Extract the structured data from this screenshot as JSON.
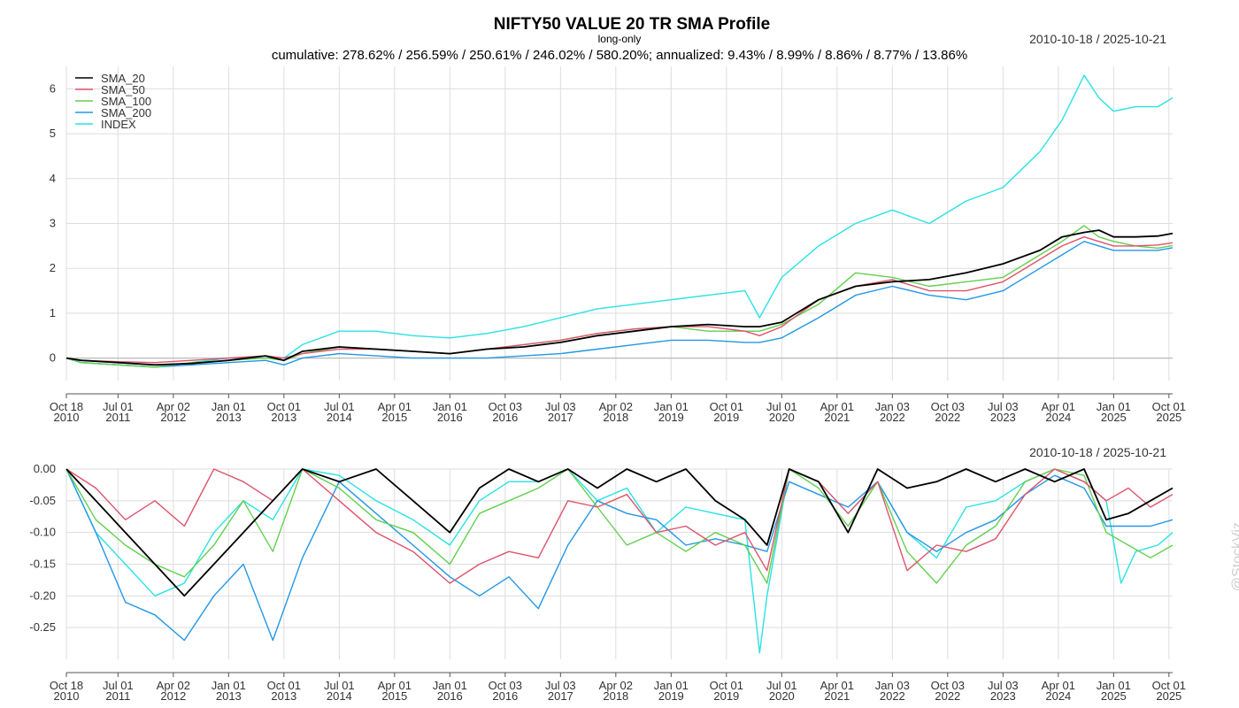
{
  "header": {
    "title": "NIFTY50 VALUE 20 TR SMA Profile",
    "subtitle": "long-only",
    "stats": "cumulative: 278.62% / 256.59% / 250.61% / 246.02% / 580.20%; annualized: 9.43% / 8.99% / 8.86% / 8.77% / 13.86%",
    "date_range_top": "2010-10-18 / 2025-10-21",
    "date_range_bottom": "2010-10-18 / 2025-10-21",
    "watermark": "@StockViz"
  },
  "colors": {
    "SMA_20": "#000000",
    "SMA_50": "#DF536B",
    "SMA_100": "#61D04F",
    "SMA_200": "#2297E6",
    "INDEX": "#28E2E5",
    "grid": "#DDDDDD"
  },
  "chart_data": [
    {
      "type": "line",
      "title": "Cumulative returns",
      "x_ticks": [
        "Oct 18\n2010",
        "Jul 01\n2011",
        "Apr 02\n2012",
        "Jan 01\n2013",
        "Oct 01\n2013",
        "Jul 01\n2014",
        "Apr 01\n2015",
        "Jan 01\n2016",
        "Oct 03\n2016",
        "Jul 03\n2017",
        "Apr 02\n2018",
        "Jan 01\n2019",
        "Oct 01\n2019",
        "Jul 01\n2020",
        "Apr 01\n2021",
        "Jan 03\n2022",
        "Oct 03\n2022",
        "Jul 03\n2023",
        "Apr 01\n2024",
        "Jan 01\n2025",
        "Oct 01\n2025"
      ],
      "y_ticks": [
        0,
        1,
        2,
        3,
        4,
        5,
        6
      ],
      "ylim": [
        -0.5,
        6.5
      ],
      "legend": "top-left",
      "grid": true,
      "series": [
        {
          "name": "SMA_20",
          "x": [
            2010.8,
            2011.0,
            2011.5,
            2012.0,
            2012.5,
            2013.0,
            2013.5,
            2013.75,
            2014.0,
            2014.5,
            2015.0,
            2015.5,
            2016.0,
            2016.5,
            2017.0,
            2017.5,
            2018.0,
            2018.5,
            2019.0,
            2019.5,
            2020.0,
            2020.2,
            2020.5,
            2021.0,
            2021.5,
            2022.0,
            2022.5,
            2023.0,
            2023.5,
            2024.0,
            2024.3,
            2024.6,
            2024.8,
            2025.0,
            2025.3,
            2025.6,
            2025.8
          ],
          "y": [
            0.0,
            -0.05,
            -0.1,
            -0.15,
            -0.12,
            -0.05,
            0.05,
            -0.05,
            0.15,
            0.25,
            0.2,
            0.15,
            0.1,
            0.2,
            0.25,
            0.35,
            0.5,
            0.6,
            0.7,
            0.75,
            0.7,
            0.7,
            0.8,
            1.3,
            1.6,
            1.7,
            1.75,
            1.9,
            2.1,
            2.4,
            2.7,
            2.8,
            2.85,
            2.7,
            2.7,
            2.72,
            2.78
          ]
        },
        {
          "name": "SMA_50",
          "x": [
            2010.8,
            2011.0,
            2011.5,
            2012.0,
            2012.5,
            2013.0,
            2013.5,
            2013.75,
            2014.0,
            2014.5,
            2015.0,
            2015.5,
            2016.0,
            2016.5,
            2017.0,
            2017.5,
            2018.0,
            2018.5,
            2019.0,
            2019.5,
            2020.0,
            2020.2,
            2020.5,
            2021.0,
            2021.5,
            2022.0,
            2022.5,
            2023.0,
            2023.5,
            2024.0,
            2024.3,
            2024.6,
            2024.8,
            2025.0,
            2025.3,
            2025.6,
            2025.8
          ],
          "y": [
            0.0,
            -0.05,
            -0.08,
            -0.1,
            -0.05,
            0.0,
            0.05,
            0.0,
            0.1,
            0.2,
            0.2,
            0.15,
            0.1,
            0.2,
            0.3,
            0.4,
            0.55,
            0.65,
            0.7,
            0.7,
            0.6,
            0.5,
            0.7,
            1.3,
            1.6,
            1.75,
            1.5,
            1.5,
            1.7,
            2.2,
            2.5,
            2.7,
            2.6,
            2.5,
            2.5,
            2.52,
            2.57
          ]
        },
        {
          "name": "SMA_100",
          "x": [
            2010.8,
            2011.0,
            2011.5,
            2012.0,
            2012.5,
            2013.0,
            2013.5,
            2013.75,
            2014.0,
            2014.5,
            2015.0,
            2015.5,
            2016.0,
            2016.5,
            2017.0,
            2017.5,
            2018.0,
            2018.5,
            2019.0,
            2019.5,
            2020.0,
            2020.2,
            2020.5,
            2021.0,
            2021.5,
            2022.0,
            2022.5,
            2023.0,
            2023.5,
            2024.0,
            2024.3,
            2024.6,
            2024.8,
            2025.0,
            2025.3,
            2025.6,
            2025.8
          ],
          "y": [
            0.0,
            -0.1,
            -0.15,
            -0.2,
            -0.1,
            -0.05,
            0.0,
            -0.05,
            0.1,
            0.25,
            0.2,
            0.15,
            0.1,
            0.2,
            0.3,
            0.4,
            0.55,
            0.65,
            0.7,
            0.6,
            0.6,
            0.6,
            0.75,
            1.2,
            1.9,
            1.8,
            1.6,
            1.7,
            1.8,
            2.3,
            2.6,
            2.95,
            2.7,
            2.6,
            2.5,
            2.45,
            2.51
          ]
        },
        {
          "name": "SMA_200",
          "x": [
            2010.8,
            2011.0,
            2011.5,
            2012.0,
            2012.5,
            2013.0,
            2013.5,
            2013.75,
            2014.0,
            2014.5,
            2015.0,
            2015.5,
            2016.0,
            2016.5,
            2017.0,
            2017.5,
            2018.0,
            2018.5,
            2019.0,
            2019.5,
            2020.0,
            2020.2,
            2020.5,
            2021.0,
            2021.5,
            2022.0,
            2022.5,
            2023.0,
            2023.5,
            2024.0,
            2024.3,
            2024.6,
            2024.8,
            2025.0,
            2025.3,
            2025.6,
            2025.8
          ],
          "y": [
            0.0,
            -0.1,
            -0.15,
            -0.2,
            -0.15,
            -0.1,
            -0.05,
            -0.15,
            0.0,
            0.1,
            0.05,
            0.0,
            0.0,
            0.0,
            0.05,
            0.1,
            0.2,
            0.3,
            0.4,
            0.4,
            0.35,
            0.35,
            0.45,
            0.9,
            1.4,
            1.6,
            1.4,
            1.3,
            1.5,
            2.0,
            2.3,
            2.6,
            2.5,
            2.4,
            2.4,
            2.4,
            2.46
          ]
        },
        {
          "name": "INDEX",
          "x": [
            2010.8,
            2011.0,
            2011.5,
            2012.0,
            2012.5,
            2013.0,
            2013.5,
            2013.75,
            2014.0,
            2014.5,
            2015.0,
            2015.5,
            2016.0,
            2016.5,
            2017.0,
            2017.5,
            2018.0,
            2018.5,
            2019.0,
            2019.5,
            2020.0,
            2020.2,
            2020.5,
            2021.0,
            2021.5,
            2022.0,
            2022.5,
            2023.0,
            2023.5,
            2024.0,
            2024.3,
            2024.6,
            2024.8,
            2025.0,
            2025.3,
            2025.6,
            2025.8
          ],
          "y": [
            0.0,
            -0.1,
            -0.15,
            -0.2,
            -0.1,
            0.0,
            0.05,
            0.0,
            0.3,
            0.6,
            0.6,
            0.5,
            0.45,
            0.55,
            0.7,
            0.9,
            1.1,
            1.2,
            1.3,
            1.4,
            1.5,
            0.9,
            1.8,
            2.5,
            3.0,
            3.3,
            3.0,
            3.5,
            3.8,
            4.6,
            5.3,
            6.3,
            5.8,
            5.5,
            5.6,
            5.6,
            5.8
          ]
        }
      ]
    },
    {
      "type": "line",
      "title": "Drawdowns",
      "x_ticks": [
        "Oct 18\n2010",
        "Jul 01\n2011",
        "Apr 02\n2012",
        "Jan 01\n2013",
        "Oct 01\n2013",
        "Jul 01\n2014",
        "Apr 01\n2015",
        "Jan 01\n2016",
        "Oct 03\n2016",
        "Jul 03\n2017",
        "Apr 02\n2018",
        "Jan 01\n2019",
        "Oct 01\n2019",
        "Jul 01\n2020",
        "Apr 01\n2021",
        "Jan 03\n2022",
        "Oct 03\n2022",
        "Jul 03\n2023",
        "Apr 01\n2024",
        "Jan 01\n2025",
        "Oct 01\n2025"
      ],
      "y_ticks": [
        "0.00",
        "-0.05",
        "-0.10",
        "-0.15",
        "-0.20",
        "-0.25"
      ],
      "ylim": [
        -0.3,
        0.0
      ],
      "grid": true,
      "series": [
        {
          "name": "SMA_20",
          "x": [
            2010.8,
            2011.2,
            2011.6,
            2012.0,
            2012.4,
            2012.8,
            2013.2,
            2013.6,
            2014.0,
            2014.5,
            2015.0,
            2015.5,
            2016.0,
            2016.4,
            2016.8,
            2017.2,
            2017.6,
            2018.0,
            2018.4,
            2018.8,
            2019.2,
            2019.6,
            2020.0,
            2020.3,
            2020.6,
            2021.0,
            2021.4,
            2021.8,
            2022.2,
            2022.6,
            2023.0,
            2023.4,
            2023.8,
            2024.2,
            2024.6,
            2024.9,
            2025.2,
            2025.5,
            2025.8
          ],
          "y": [
            0.0,
            -0.05,
            -0.1,
            -0.15,
            -0.2,
            -0.15,
            -0.1,
            -0.05,
            0.0,
            -0.02,
            0.0,
            -0.05,
            -0.1,
            -0.03,
            0.0,
            -0.02,
            0.0,
            -0.03,
            0.0,
            -0.02,
            0.0,
            -0.05,
            -0.08,
            -0.12,
            0.0,
            -0.02,
            -0.1,
            0.0,
            -0.03,
            -0.02,
            0.0,
            -0.02,
            0.0,
            -0.02,
            0.0,
            -0.08,
            -0.07,
            -0.05,
            -0.03
          ]
        },
        {
          "name": "SMA_50",
          "x": [
            2010.8,
            2011.2,
            2011.6,
            2012.0,
            2012.4,
            2012.8,
            2013.2,
            2013.6,
            2014.0,
            2014.5,
            2015.0,
            2015.5,
            2016.0,
            2016.4,
            2016.8,
            2017.2,
            2017.6,
            2018.0,
            2018.4,
            2018.8,
            2019.2,
            2019.6,
            2020.0,
            2020.3,
            2020.6,
            2021.0,
            2021.4,
            2021.8,
            2022.2,
            2022.6,
            2023.0,
            2023.4,
            2023.8,
            2024.2,
            2024.6,
            2024.9,
            2025.2,
            2025.5,
            2025.8
          ],
          "y": [
            0.0,
            -0.03,
            -0.08,
            -0.05,
            -0.09,
            0.0,
            -0.02,
            -0.05,
            0.0,
            -0.05,
            -0.1,
            -0.13,
            -0.18,
            -0.15,
            -0.13,
            -0.14,
            -0.05,
            -0.06,
            -0.04,
            -0.1,
            -0.09,
            -0.12,
            -0.1,
            -0.16,
            0.0,
            -0.02,
            -0.07,
            -0.02,
            -0.16,
            -0.12,
            -0.13,
            -0.11,
            -0.04,
            0.0,
            -0.02,
            -0.05,
            -0.03,
            -0.06,
            -0.04
          ]
        },
        {
          "name": "SMA_100",
          "x": [
            2010.8,
            2011.2,
            2011.6,
            2012.0,
            2012.4,
            2012.8,
            2013.2,
            2013.6,
            2014.0,
            2014.5,
            2015.0,
            2015.5,
            2016.0,
            2016.4,
            2016.8,
            2017.2,
            2017.6,
            2018.0,
            2018.4,
            2018.8,
            2019.2,
            2019.6,
            2020.0,
            2020.3,
            2020.6,
            2021.0,
            2021.4,
            2021.8,
            2022.2,
            2022.6,
            2023.0,
            2023.4,
            2023.8,
            2024.2,
            2024.6,
            2024.9,
            2025.2,
            2025.5,
            2025.8
          ],
          "y": [
            0.0,
            -0.08,
            -0.12,
            -0.15,
            -0.17,
            -0.12,
            -0.05,
            -0.13,
            0.0,
            -0.03,
            -0.08,
            -0.1,
            -0.15,
            -0.07,
            -0.05,
            -0.03,
            0.0,
            -0.06,
            -0.12,
            -0.1,
            -0.13,
            -0.1,
            -0.12,
            -0.18,
            0.0,
            -0.03,
            -0.09,
            -0.02,
            -0.13,
            -0.18,
            -0.12,
            -0.09,
            -0.02,
            0.0,
            -0.01,
            -0.1,
            -0.12,
            -0.14,
            -0.12
          ]
        },
        {
          "name": "SMA_200",
          "x": [
            2010.8,
            2011.2,
            2011.6,
            2012.0,
            2012.4,
            2012.8,
            2013.2,
            2013.6,
            2014.0,
            2014.5,
            2015.0,
            2015.5,
            2016.0,
            2016.4,
            2016.8,
            2017.2,
            2017.6,
            2018.0,
            2018.4,
            2018.8,
            2019.2,
            2019.6,
            2020.0,
            2020.3,
            2020.6,
            2021.0,
            2021.4,
            2021.8,
            2022.2,
            2022.6,
            2023.0,
            2023.4,
            2023.8,
            2024.2,
            2024.6,
            2024.9,
            2025.2,
            2025.5,
            2025.8
          ],
          "y": [
            0.0,
            -0.1,
            -0.21,
            -0.23,
            -0.27,
            -0.2,
            -0.15,
            -0.27,
            -0.14,
            -0.02,
            -0.07,
            -0.12,
            -0.17,
            -0.2,
            -0.17,
            -0.22,
            -0.12,
            -0.05,
            -0.07,
            -0.08,
            -0.12,
            -0.11,
            -0.12,
            -0.13,
            -0.02,
            -0.04,
            -0.06,
            -0.02,
            -0.1,
            -0.13,
            -0.1,
            -0.08,
            -0.04,
            -0.01,
            -0.03,
            -0.09,
            -0.09,
            -0.09,
            -0.08
          ]
        },
        {
          "name": "INDEX",
          "x": [
            2010.8,
            2011.2,
            2011.6,
            2012.0,
            2012.4,
            2012.8,
            2013.2,
            2013.6,
            2014.0,
            2014.5,
            2015.0,
            2015.5,
            2016.0,
            2016.4,
            2016.8,
            2017.2,
            2017.6,
            2018.0,
            2018.4,
            2018.8,
            2019.2,
            2019.6,
            2020.0,
            2020.2,
            2020.3,
            2020.6,
            2021.0,
            2021.4,
            2021.8,
            2022.2,
            2022.6,
            2023.0,
            2023.4,
            2023.8,
            2024.2,
            2024.6,
            2024.9,
            2025.1,
            2025.3,
            2025.6,
            2025.8
          ],
          "y": [
            0.0,
            -0.1,
            -0.15,
            -0.2,
            -0.18,
            -0.1,
            -0.05,
            -0.08,
            0.0,
            -0.01,
            -0.05,
            -0.08,
            -0.12,
            -0.05,
            -0.02,
            -0.02,
            0.0,
            -0.05,
            -0.03,
            -0.1,
            -0.06,
            -0.07,
            -0.08,
            -0.29,
            -0.2,
            0.0,
            -0.02,
            -0.07,
            -0.02,
            -0.1,
            -0.14,
            -0.06,
            -0.05,
            -0.02,
            0.0,
            -0.02,
            -0.05,
            -0.18,
            -0.13,
            -0.12,
            -0.1
          ]
        }
      ]
    }
  ]
}
